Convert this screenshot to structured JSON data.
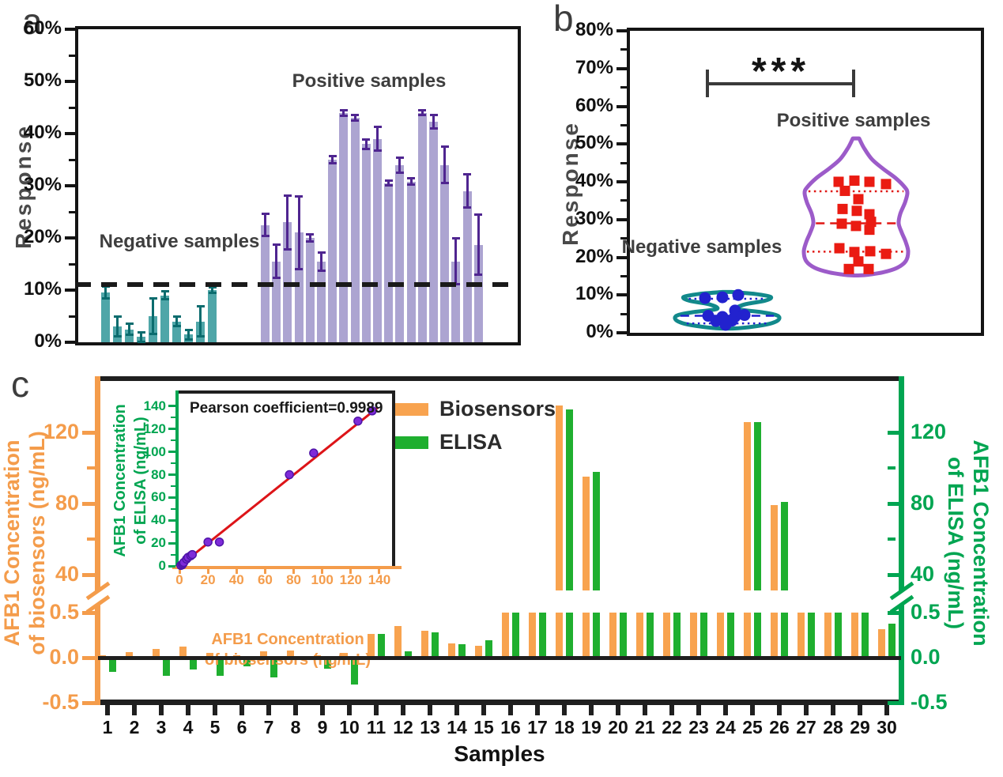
{
  "figure_title_letters": {
    "a": "a",
    "b": "b",
    "c": "c"
  },
  "chart_data": [
    {
      "id": "panel_a",
      "type": "bar",
      "title_letter": "a",
      "ylabel": "Response",
      "ylim": [
        0,
        60
      ],
      "ytick_step": 10,
      "ytick_labels": [
        "0%",
        "10%",
        "20%",
        "30%",
        "40%",
        "50%",
        "60%"
      ],
      "threshold_pct": 11,
      "groups": [
        {
          "name": "Negative samples",
          "fill": "#4FA6A8",
          "error_color": "#0B6C6E",
          "values": [
            9.5,
            3,
            2.5,
            1,
            5,
            9,
            4,
            1.5,
            4,
            10
          ],
          "errors": [
            1.2,
            2,
            1.2,
            1,
            3.5,
            0.8,
            1,
            1,
            3,
            0.6
          ]
        },
        {
          "name": "Positive samples",
          "fill": "#ACA4D1",
          "error_color": "#4F2590",
          "values": [
            22.5,
            15.5,
            23,
            21,
            20,
            15.5,
            35,
            44,
            43,
            38,
            39,
            30.5,
            34,
            30.8,
            44,
            42.3,
            34,
            15.5,
            29,
            18.7
          ],
          "errors": [
            2.2,
            3.3,
            5.2,
            7,
            0.8,
            1.8,
            0.8,
            0.6,
            0.6,
            1,
            2.4,
            0.5,
            1.5,
            0.7,
            0.5,
            1.4,
            3.6,
            4.5,
            3.3,
            5.8
          ]
        }
      ]
    },
    {
      "id": "panel_b",
      "type": "violin",
      "title_letter": "b",
      "ylabel": "Response",
      "ylim": [
        0,
        80
      ],
      "ytick_step": 10,
      "ytick_labels": [
        "0%",
        "10%",
        "20%",
        "30%",
        "40%",
        "50%",
        "60%",
        "70%",
        "80%"
      ],
      "significance": "***",
      "groups": [
        {
          "name": "Negative samples",
          "outline": "#12898B",
          "marker": "circle",
          "marker_color": "#2222CE",
          "quartile_color": "#2222CE",
          "quartiles": {
            "q1": 2.5,
            "median": 4.5,
            "q3": 9
          },
          "profile": [
            [
              10.8,
              6
            ],
            [
              10.3,
              35
            ],
            [
              9.5,
              55
            ],
            [
              8.5,
              48
            ],
            [
              7.5,
              22
            ],
            [
              6.3,
              13
            ],
            [
              5.5,
              42
            ],
            [
              4.7,
              62
            ],
            [
              3.8,
              66
            ],
            [
              2.8,
              60
            ],
            [
              2,
              45
            ],
            [
              1.2,
              14
            ]
          ],
          "points": [
            [
              -28,
              9.2
            ],
            [
              -6,
              9.4
            ],
            [
              14,
              10
            ],
            [
              10,
              5.9
            ],
            [
              -24,
              4.5
            ],
            [
              -6,
              4.2
            ],
            [
              10,
              4.3
            ],
            [
              22,
              4.7
            ],
            [
              -14,
              3.1
            ],
            [
              6,
              3.2
            ],
            [
              -2,
              2.1
            ]
          ]
        },
        {
          "name": "Positive samples",
          "outline": "#9C5BC9",
          "marker": "square",
          "marker_color": "#EA1B12",
          "quartile_color": "#E01713",
          "quartiles": {
            "q1": 21.5,
            "median": 29,
            "q3": 37.5
          },
          "profile": [
            [
              51.5,
              4
            ],
            [
              49,
              10
            ],
            [
              46,
              20
            ],
            [
              43.5,
              34
            ],
            [
              41,
              50
            ],
            [
              38.5,
              62
            ],
            [
              37,
              65
            ],
            [
              34.5,
              62
            ],
            [
              31.5,
              56
            ],
            [
              29,
              54
            ],
            [
              26.5,
              58
            ],
            [
              24,
              63
            ],
            [
              21.5,
              66
            ],
            [
              19,
              63
            ],
            [
              17.2,
              52
            ],
            [
              16,
              34
            ],
            [
              15.4,
              16
            ],
            [
              15.2,
              5
            ]
          ],
          "points": [
            [
              -22,
              40
            ],
            [
              -2,
              40.3
            ],
            [
              17,
              40
            ],
            [
              38,
              39.4
            ],
            [
              -14,
              37.6
            ],
            [
              3,
              35.4
            ],
            [
              -17,
              32.8
            ],
            [
              1,
              32.3
            ],
            [
              17,
              31.4
            ],
            [
              19,
              29.4
            ],
            [
              -18,
              28.9
            ],
            [
              0,
              28.3
            ],
            [
              17,
              27.3
            ],
            [
              -21,
              22.4
            ],
            [
              -2,
              21.4
            ],
            [
              18,
              21.6
            ],
            [
              38,
              20.9
            ],
            [
              3,
              18.9
            ],
            [
              -9,
              16.9
            ],
            [
              16,
              16.9
            ]
          ]
        }
      ]
    },
    {
      "id": "panel_c",
      "type": "grouped_bar_broken_axis",
      "title_letter": "c",
      "xlabel": "Samples",
      "left_axis": {
        "color": "#F49C4B",
        "label_line1": "AFB1 Concentration",
        "label_line2": "of biosensors (ng/mL)",
        "upper_ticks": [
          {
            "v": 120,
            "label": "120"
          },
          {
            "v": 80,
            "label": "80"
          },
          {
            "v": 40,
            "label": "40"
          }
        ],
        "lower_ticks": [
          {
            "v": 0.5,
            "label": "0.5"
          },
          {
            "v": 0,
            "label": "0.0"
          },
          {
            "v": -0.5,
            "label": "-0.5"
          }
        ]
      },
      "right_axis": {
        "color": "#00A551",
        "label_line1": "AFB1 Concentration",
        "label_line2": "of ELISA (ng/mL)",
        "upper_ticks": [
          {
            "v": 120,
            "label": "120"
          },
          {
            "v": 80,
            "label": "80"
          },
          {
            "v": 40,
            "label": "40"
          }
        ],
        "lower_ticks": [
          {
            "v": 0.5,
            "label": "0.5"
          },
          {
            "v": 0,
            "label": "0.0"
          },
          {
            "v": -0.5,
            "label": "-0.5"
          }
        ]
      },
      "legend": [
        {
          "label": "Biosensors",
          "color": "#F8A34F"
        },
        {
          "label": "ELISA",
          "color": "#1FAF2F"
        }
      ],
      "categories": [
        "1",
        "2",
        "3",
        "4",
        "5",
        "6",
        "7",
        "8",
        "9",
        "10",
        "11",
        "12",
        "13",
        "14",
        "15",
        "16",
        "17",
        "18",
        "19",
        "20",
        "21",
        "22",
        "23",
        "24",
        "25",
        "26",
        "27",
        "28",
        "29",
        "30"
      ],
      "series": [
        {
          "name": "Biosensors",
          "color": "#F8A34F",
          "values": [
            0.03,
            0.06,
            0.1,
            0.12,
            0.05,
            0.03,
            0.07,
            0.08,
            0.03,
            0.05,
            0.26,
            0.35,
            0.3,
            0.16,
            0.13,
            0.5,
            0.5,
            135,
            95,
            0.5,
            0.5,
            0.5,
            0.5,
            0.5,
            126,
            79,
            0.5,
            0.5,
            0.5,
            0.32
          ]
        },
        {
          "name": "ELISA",
          "color": "#1FAF2F",
          "values": [
            -0.16,
            0,
            -0.2,
            -0.13,
            -0.2,
            -0.1,
            -0.22,
            0,
            -0.12,
            -0.3,
            0.26,
            0.07,
            0.28,
            0.15,
            0.19,
            0.5,
            0.5,
            133,
            98,
            0.5,
            0.5,
            0.5,
            0.5,
            0.5,
            126,
            81,
            0.5,
            0.5,
            0.5,
            0.38
          ]
        }
      ],
      "axis_break": {
        "lower_min": -0.5,
        "lower_max": 0.5,
        "upper_min": 40,
        "upper_max": 140
      }
    },
    {
      "id": "inset",
      "type": "scatter",
      "title": "Pearson coefficient=0.9989",
      "xlabel_line1": "AFB1 Concentration",
      "xlabel_line2": "of biosensors (ng/mL)",
      "ylabel_line1": "AFB1 Concentration",
      "ylabel_line2": "of ELISA (ng/mL)",
      "xlim": [
        0,
        145
      ],
      "ylim": [
        0,
        145
      ],
      "tick_step": 20,
      "tick_max": 140,
      "axis_color_x": "#F49C4B",
      "axis_color_y": "#00A551",
      "points": [
        [
          1,
          0.5
        ],
        [
          2,
          1
        ],
        [
          2.5,
          2
        ],
        [
          3,
          3
        ],
        [
          5,
          6
        ],
        [
          6,
          7.5
        ],
        [
          8,
          9
        ],
        [
          9,
          10
        ],
        [
          20,
          21
        ],
        [
          28,
          21
        ],
        [
          77,
          80
        ],
        [
          94,
          99
        ],
        [
          125,
          127
        ],
        [
          135,
          136
        ]
      ],
      "fit_line": {
        "x1": 0,
        "y1": 0,
        "x2": 139,
        "y2": 139,
        "color": "#DD1418"
      },
      "point_color": "#7E2BD9",
      "point_edge": "#4F14A8"
    }
  ]
}
